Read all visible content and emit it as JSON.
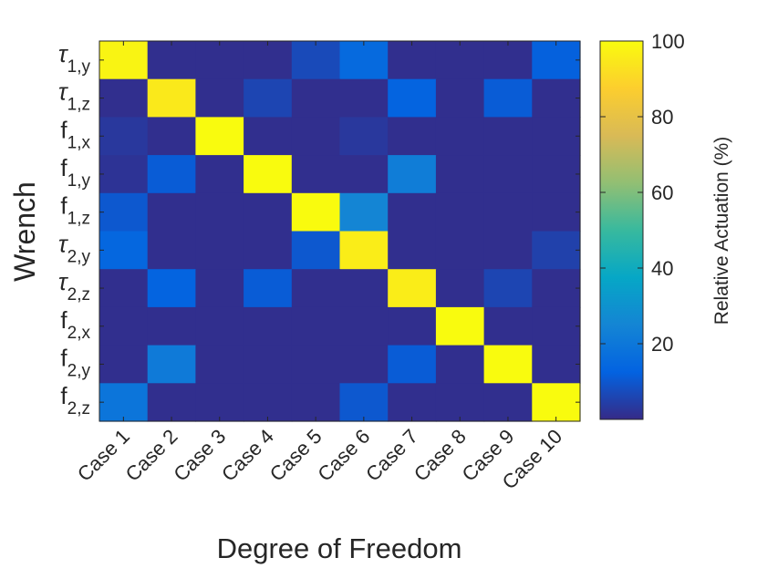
{
  "chart_data": {
    "type": "heatmap",
    "title": "",
    "xlabel": "Degree of Freedom",
    "ylabel": "Wrench",
    "x_categories": [
      "Case 1",
      "Case 2",
      "Case 3",
      "Case 4",
      "Case 5",
      "Case 6",
      "Case 7",
      "Case 8",
      "Case 9",
      "Case 10"
    ],
    "y_categories": [
      {
        "symbol": "τ",
        "sub": "1,y"
      },
      {
        "symbol": "τ",
        "sub": "1,z"
      },
      {
        "symbol": "f",
        "sub": "1,x"
      },
      {
        "symbol": "f",
        "sub": "1,y"
      },
      {
        "symbol": "f",
        "sub": "1,z"
      },
      {
        "symbol": "τ",
        "sub": "2,y"
      },
      {
        "symbol": "τ",
        "sub": "2,z"
      },
      {
        "symbol": "f",
        "sub": "2,x"
      },
      {
        "symbol": "f",
        "sub": "2,y"
      },
      {
        "symbol": "f",
        "sub": "2,z"
      }
    ],
    "values": [
      [
        98,
        1,
        1,
        1,
        7,
        15,
        1,
        1,
        1,
        12
      ],
      [
        1,
        95,
        1,
        6,
        1,
        1,
        13,
        1,
        11,
        1
      ],
      [
        3,
        1,
        100,
        1,
        1,
        3,
        1,
        1,
        1,
        1
      ],
      [
        2,
        11,
        1,
        100,
        1,
        1,
        22,
        1,
        1,
        1
      ],
      [
        10,
        1,
        1,
        1,
        100,
        25,
        1,
        1,
        1,
        1
      ],
      [
        14,
        1,
        1,
        1,
        10,
        96,
        1,
        1,
        1,
        5
      ],
      [
        1,
        13,
        1,
        11,
        1,
        1,
        96,
        1,
        6,
        1
      ],
      [
        1,
        1,
        1,
        1,
        1,
        1,
        1,
        100,
        1,
        1
      ],
      [
        1,
        21,
        1,
        1,
        1,
        1,
        11,
        1,
        100,
        1
      ],
      [
        19,
        1,
        1,
        1,
        1,
        10,
        1,
        1,
        1,
        100
      ]
    ],
    "colorbar": {
      "label": "Relative Actuation (%)",
      "range": [
        0,
        100
      ],
      "ticks": [
        20,
        40,
        60,
        80,
        100
      ],
      "colormap": "parula"
    }
  }
}
